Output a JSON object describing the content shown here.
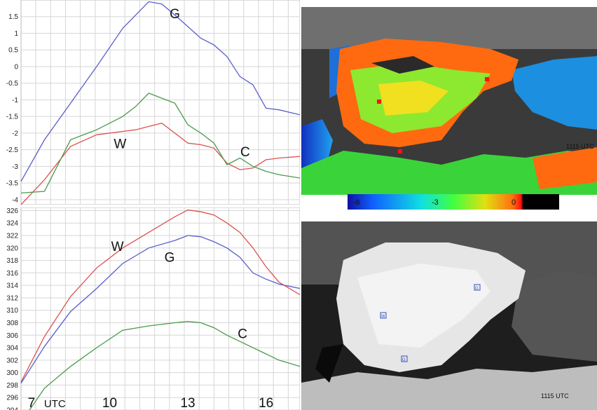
{
  "chart_data": [
    {
      "type": "line",
      "id": "top",
      "ylim": [
        -4.15,
        2.0
      ],
      "xlim": [
        6.6,
        17.3
      ],
      "yticks": [
        "-4",
        "-3.5",
        "-3",
        "-2.5",
        "-2",
        "-1.5",
        "-1",
        "-0.5",
        "0",
        "0.5",
        "1",
        "1.5"
      ],
      "ytick_values": [
        -4,
        -3.5,
        -3,
        -2.5,
        -2,
        -1.5,
        -1,
        -0.5,
        0,
        0.5,
        1,
        1.5
      ],
      "grid": true,
      "series": [
        {
          "label": "G",
          "color": "#5a5fc8",
          "x": [
            6.6,
            7.5,
            8.5,
            9.5,
            10.5,
            11.0,
            11.5,
            12.0,
            12.5,
            13.0,
            13.5,
            14.0,
            14.5,
            15.0,
            15.5,
            16.0,
            16.5,
            17.3
          ],
          "y": [
            -3.45,
            -2.2,
            -1.1,
            0,
            1.15,
            1.55,
            1.95,
            1.88,
            1.55,
            1.2,
            0.85,
            0.65,
            0.3,
            -0.3,
            -0.55,
            -1.25,
            -1.3,
            -1.45
          ]
        },
        {
          "label": "W",
          "color": "#d9534f",
          "x": [
            6.6,
            7.5,
            8.5,
            9.5,
            10.5,
            11.0,
            11.5,
            12.0,
            12.5,
            13.0,
            13.5,
            14.0,
            14.5,
            15.0,
            15.5,
            16.0,
            16.5,
            17.3
          ],
          "y": [
            -4.15,
            -3.4,
            -2.4,
            -2.05,
            -1.95,
            -1.9,
            -1.8,
            -1.7,
            -2.0,
            -2.3,
            -2.35,
            -2.45,
            -2.9,
            -3.1,
            -3.05,
            -2.8,
            -2.75,
            -2.7
          ]
        },
        {
          "label": "C",
          "color": "#4a9a4a",
          "x": [
            6.6,
            7.5,
            8.5,
            9.5,
            10.5,
            11.0,
            11.5,
            12.0,
            12.5,
            13.0,
            13.5,
            14.0,
            14.5,
            15.0,
            15.5,
            16.0,
            16.5,
            17.3
          ],
          "y": [
            -3.8,
            -3.75,
            -2.2,
            -1.9,
            -1.5,
            -1.2,
            -0.8,
            -0.95,
            -1.1,
            -1.75,
            -2.0,
            -2.3,
            -2.95,
            -2.75,
            -3.0,
            -3.15,
            -3.25,
            -3.35
          ]
        }
      ],
      "labels": [
        {
          "text": "G",
          "x": 12.5,
          "y": 1.45
        },
        {
          "text": "W",
          "x": 10.4,
          "y": -2.45
        },
        {
          "text": "C",
          "x": 15.2,
          "y": -2.7
        }
      ]
    },
    {
      "type": "line",
      "id": "bottom",
      "ylim": [
        294,
        326.5
      ],
      "xlim": [
        6.6,
        17.3
      ],
      "yticks": [
        "294",
        "296",
        "298",
        "300",
        "302",
        "304",
        "306",
        "308",
        "310",
        "312",
        "314",
        "316",
        "318",
        "320",
        "322",
        "324",
        "326"
      ],
      "ytick_values": [
        294,
        296,
        298,
        300,
        302,
        304,
        306,
        308,
        310,
        312,
        314,
        316,
        318,
        320,
        322,
        324,
        326
      ],
      "xticks": [
        "7",
        "10",
        "13",
        "16"
      ],
      "xtick_values": [
        7,
        10,
        13,
        16
      ],
      "x_unit_label": "UTC",
      "grid": true,
      "series": [
        {
          "label": "W",
          "color": "#d9534f",
          "x": [
            6.6,
            7.5,
            8.5,
            9.5,
            10.5,
            11.5,
            12.5,
            13.0,
            13.5,
            14.0,
            14.5,
            15.0,
            15.5,
            16.0,
            16.5,
            17.3
          ],
          "y": [
            298.5,
            305.8,
            312.2,
            316.8,
            320.0,
            322.5,
            325.0,
            326.1,
            325.8,
            325.3,
            324.0,
            322.5,
            320.0,
            317.0,
            314.5,
            312.5
          ]
        },
        {
          "label": "G",
          "color": "#5a5fc8",
          "x": [
            6.6,
            7.5,
            8.5,
            9.5,
            10.5,
            11.5,
            12.5,
            13.0,
            13.5,
            14.0,
            14.5,
            15.0,
            15.5,
            16.0,
            16.5,
            17.3
          ],
          "y": [
            298.3,
            304.2,
            309.8,
            313.5,
            317.5,
            320.0,
            321.2,
            322.0,
            321.8,
            321.0,
            320.0,
            318.5,
            316.0,
            315.0,
            314.2,
            313.5
          ]
        },
        {
          "label": "C",
          "color": "#4a9a4a",
          "x": [
            6.6,
            7.5,
            8.5,
            9.5,
            10.5,
            11.5,
            12.5,
            13.0,
            13.5,
            14.0,
            14.5,
            15.0,
            15.5,
            16.0,
            16.5,
            17.3
          ],
          "y": [
            292.0,
            297.5,
            301.0,
            304.0,
            306.8,
            307.5,
            308.0,
            308.2,
            308.0,
            307.2,
            306.0,
            305.0,
            304.0,
            303.0,
            302.0,
            301.0
          ]
        }
      ],
      "labels": [
        {
          "text": "W",
          "x": 10.3,
          "y": 319.5
        },
        {
          "text": "G",
          "x": 12.3,
          "y": 317.8
        },
        {
          "text": "C",
          "x": 15.1,
          "y": 305.5
        }
      ]
    }
  ],
  "satellite_top": {
    "timestamp": "1115 UTC",
    "colorbar": {
      "labels": [
        "-6",
        "-3",
        "0"
      ],
      "stops": [
        "#1010a0",
        "#1060ff",
        "#10e0e0",
        "#40ff40",
        "#e0e010",
        "#ff7010",
        "#ff1010",
        "#000000"
      ]
    }
  },
  "satellite_bottom": {
    "timestamp": "1115 UTC",
    "markers": [
      "G",
      "W",
      "G"
    ]
  }
}
